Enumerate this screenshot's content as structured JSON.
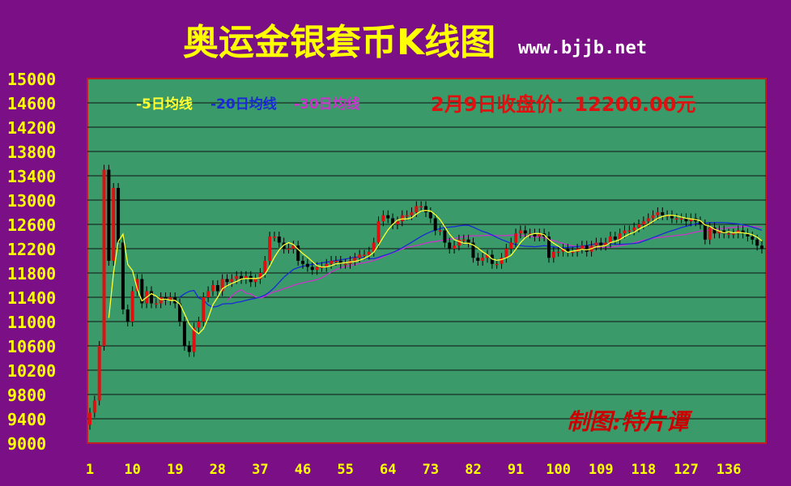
{
  "title": "奥运金银套币K线图",
  "website": "www.bjjb.net",
  "close_price_label": "2月9日收盘价：12200.00元",
  "author_label": "制图:特片谭",
  "legend": [
    {
      "label": "-5日均线",
      "color": "#ffff33"
    },
    {
      "label": "-20日均线",
      "color": "#1a2ad6"
    },
    {
      "label": "-30日均线",
      "color": "#cc33cc"
    }
  ],
  "colors": {
    "background": "#7b0f86",
    "plot_background": "#3a9a6a",
    "up_candle": "#e01010",
    "down_candle": "#000000",
    "title": "#ffff00",
    "axis_labels": "#ffff00",
    "close_label": "#e01010",
    "frame": "#c02020"
  },
  "chart_data": {
    "type": "candlestick",
    "title": "奥运金银套币K线图",
    "ylim": [
      9000,
      15000
    ],
    "y_ticks": [
      15000,
      14600,
      14200,
      13800,
      13400,
      13000,
      12600,
      12200,
      11800,
      11400,
      11000,
      10600,
      10200,
      9800,
      9400,
      9000
    ],
    "xlim": [
      1,
      143
    ],
    "x_ticks": [
      1,
      10,
      19,
      28,
      37,
      46,
      55,
      64,
      73,
      82,
      91,
      100,
      109,
      118,
      127,
      136
    ],
    "grid": true,
    "close_points": [
      [
        1,
        9500
      ],
      [
        2,
        9700
      ],
      [
        3,
        10600
      ],
      [
        4,
        13500
      ],
      [
        5,
        12000
      ],
      [
        6,
        13200
      ],
      [
        7,
        12300
      ],
      [
        8,
        11200
      ],
      [
        9,
        11000
      ],
      [
        10,
        11500
      ],
      [
        11,
        11700
      ],
      [
        12,
        11300
      ],
      [
        13,
        11500
      ],
      [
        14,
        11300
      ],
      [
        15,
        11300
      ],
      [
        16,
        11400
      ],
      [
        17,
        11350
      ],
      [
        18,
        11400
      ],
      [
        19,
        11300
      ],
      [
        20,
        11000
      ],
      [
        21,
        10600
      ],
      [
        22,
        10500
      ],
      [
        23,
        10900
      ],
      [
        24,
        11000
      ],
      [
        25,
        11400
      ],
      [
        26,
        11500
      ],
      [
        27,
        11600
      ],
      [
        28,
        11500
      ],
      [
        29,
        11700
      ],
      [
        30,
        11650
      ],
      [
        31,
        11700
      ],
      [
        32,
        11750
      ],
      [
        33,
        11700
      ],
      [
        34,
        11750
      ],
      [
        35,
        11650
      ],
      [
        36,
        11700
      ],
      [
        37,
        11800
      ],
      [
        38,
        12000
      ],
      [
        39,
        12400
      ],
      [
        40,
        12400
      ],
      [
        41,
        12300
      ],
      [
        42,
        12200
      ],
      [
        43,
        12200
      ],
      [
        44,
        12250
      ],
      [
        45,
        12000
      ],
      [
        46,
        11950
      ],
      [
        47,
        11900
      ],
      [
        48,
        11850
      ],
      [
        49,
        11900
      ],
      [
        50,
        11900
      ],
      [
        51,
        11950
      ],
      [
        52,
        12000
      ],
      [
        53,
        12000
      ],
      [
        54,
        11950
      ],
      [
        55,
        11950
      ],
      [
        56,
        12000
      ],
      [
        57,
        12050
      ],
      [
        58,
        12100
      ],
      [
        59,
        12100
      ],
      [
        60,
        12150
      ],
      [
        61,
        12300
      ],
      [
        62,
        12650
      ],
      [
        63,
        12750
      ],
      [
        64,
        12700
      ],
      [
        65,
        12600
      ],
      [
        66,
        12650
      ],
      [
        67,
        12750
      ],
      [
        68,
        12750
      ],
      [
        69,
        12800
      ],
      [
        70,
        12900
      ],
      [
        71,
        12900
      ],
      [
        72,
        12800
      ],
      [
        73,
        12700
      ],
      [
        74,
        12500
      ],
      [
        75,
        12500
      ],
      [
        76,
        12300
      ],
      [
        77,
        12200
      ],
      [
        78,
        12250
      ],
      [
        79,
        12350
      ],
      [
        80,
        12350
      ],
      [
        81,
        12300
      ],
      [
        82,
        12050
      ],
      [
        83,
        12000
      ],
      [
        84,
        12050
      ],
      [
        85,
        12100
      ],
      [
        86,
        11950
      ],
      [
        87,
        11950
      ],
      [
        88,
        12050
      ],
      [
        89,
        12200
      ],
      [
        90,
        12300
      ],
      [
        91,
        12450
      ],
      [
        92,
        12500
      ],
      [
        93,
        12450
      ],
      [
        94,
        12450
      ],
      [
        95,
        12400
      ],
      [
        96,
        12450
      ],
      [
        97,
        12400
      ],
      [
        98,
        12050
      ],
      [
        99,
        12150
      ],
      [
        100,
        12150
      ],
      [
        101,
        12200
      ],
      [
        102,
        12150
      ],
      [
        103,
        12150
      ],
      [
        104,
        12200
      ],
      [
        105,
        12250
      ],
      [
        106,
        12150
      ],
      [
        107,
        12250
      ],
      [
        108,
        12300
      ],
      [
        109,
        12250
      ],
      [
        110,
        12300
      ],
      [
        111,
        12400
      ],
      [
        112,
        12350
      ],
      [
        113,
        12450
      ],
      [
        114,
        12500
      ],
      [
        115,
        12500
      ],
      [
        116,
        12550
      ],
      [
        117,
        12600
      ],
      [
        118,
        12650
      ],
      [
        119,
        12700
      ],
      [
        120,
        12750
      ],
      [
        121,
        12800
      ],
      [
        122,
        12750
      ],
      [
        123,
        12750
      ],
      [
        124,
        12700
      ],
      [
        125,
        12700
      ],
      [
        126,
        12700
      ],
      [
        127,
        12650
      ],
      [
        128,
        12700
      ],
      [
        129,
        12650
      ],
      [
        130,
        12600
      ],
      [
        131,
        12350
      ],
      [
        132,
        12550
      ],
      [
        133,
        12450
      ],
      [
        134,
        12500
      ],
      [
        135,
        12450
      ],
      [
        136,
        12450
      ],
      [
        137,
        12450
      ],
      [
        138,
        12500
      ],
      [
        139,
        12450
      ],
      [
        140,
        12400
      ],
      [
        141,
        12350
      ],
      [
        142,
        12250
      ],
      [
        143,
        12200
      ]
    ],
    "last_close": 12200
  }
}
